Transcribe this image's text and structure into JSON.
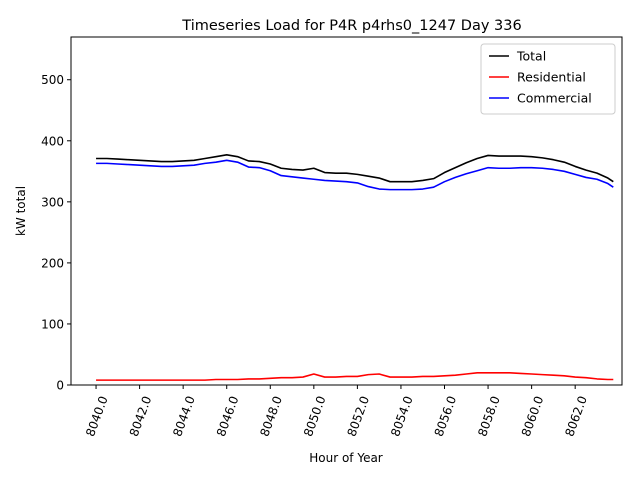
{
  "chart_data": {
    "type": "line",
    "title": "Timeseries Load for P4R p4rhs0_1247  Day 336",
    "xlabel": "Hour of Year",
    "ylabel": "kW total",
    "xlim": [
      8038.85,
      8064.15
    ],
    "ylim": [
      0,
      570
    ],
    "x_ticks": [
      8040,
      8042,
      8044,
      8046,
      8048,
      8050,
      8052,
      8054,
      8056,
      8058,
      8060,
      8062
    ],
    "x_tick_labels": [
      "8040.0",
      "8042.0",
      "8044.0",
      "8046.0",
      "8048.0",
      "8050.0",
      "8052.0",
      "8054.0",
      "8056.0",
      "8058.0",
      "8060.0",
      "8062.0"
    ],
    "y_ticks": [
      0,
      100,
      200,
      300,
      400,
      500
    ],
    "y_tick_labels": [
      "0",
      "100",
      "200",
      "300",
      "400",
      "500"
    ],
    "legend_position": "top-right",
    "x": [
      8040,
      8040.5,
      8041,
      8041.5,
      8042,
      8042.5,
      8043,
      8043.5,
      8044,
      8044.5,
      8045,
      8045.5,
      8046,
      8046.5,
      8047,
      8047.5,
      8048,
      8048.5,
      8049,
      8049.5,
      8050,
      8050.5,
      8051,
      8051.5,
      8052,
      8052.5,
      8053,
      8053.5,
      8054,
      8054.5,
      8055,
      8055.5,
      8056,
      8056.5,
      8057,
      8057.5,
      8058,
      8058.5,
      8059,
      8059.5,
      8060,
      8060.5,
      8061,
      8061.5,
      8062,
      8062.5,
      8063,
      8063.5,
      8063.75
    ],
    "series": [
      {
        "name": "Total",
        "color": "#000000",
        "values": [
          371,
          371,
          370,
          369,
          368,
          367,
          366,
          366,
          367,
          368,
          371,
          374,
          377,
          374,
          367,
          366,
          362,
          355,
          353,
          352,
          355,
          348,
          347,
          347,
          345,
          342,
          339,
          333,
          333,
          333,
          335,
          338,
          348,
          356,
          364,
          371,
          376,
          375,
          375,
          375,
          374,
          372,
          369,
          365,
          358,
          352,
          347,
          339,
          333
        ]
      },
      {
        "name": "Residential",
        "color": "#ff0000",
        "values": [
          8,
          8,
          8,
          8,
          8,
          8,
          8,
          8,
          8,
          8,
          8,
          9,
          9,
          9,
          10,
          10,
          11,
          12,
          12,
          13,
          18,
          13,
          13,
          14,
          14,
          17,
          18,
          13,
          13,
          13,
          14,
          14,
          15,
          16,
          18,
          20,
          20,
          20,
          20,
          19,
          18,
          17,
          16,
          15,
          13,
          12,
          10,
          9,
          9
        ]
      },
      {
        "name": "Commercial",
        "color": "#0000ff",
        "values": [
          363,
          363,
          362,
          361,
          360,
          359,
          358,
          358,
          359,
          360,
          363,
          365,
          368,
          365,
          357,
          356,
          351,
          343,
          341,
          339,
          337,
          335,
          334,
          333,
          331,
          325,
          321,
          320,
          320,
          320,
          321,
          324,
          333,
          340,
          346,
          351,
          356,
          355,
          355,
          356,
          356,
          355,
          353,
          350,
          345,
          340,
          337,
          330,
          324
        ]
      }
    ]
  }
}
